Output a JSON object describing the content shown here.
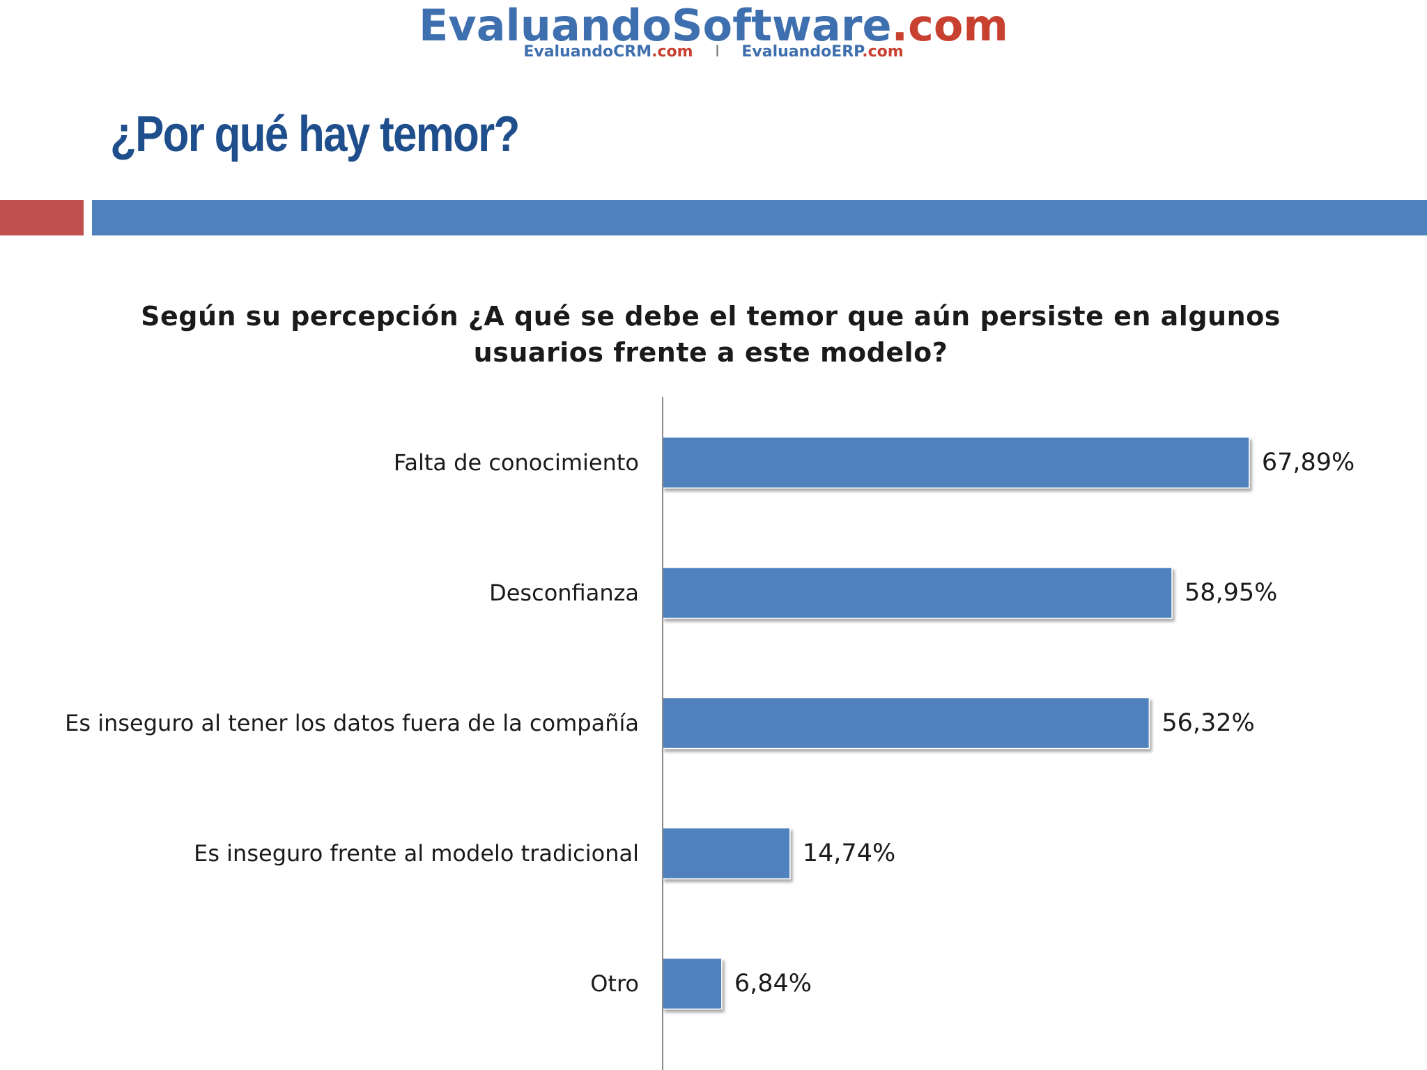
{
  "logo": {
    "main_a": "EvaluandoSoftware",
    "main_b": ".com",
    "sub_left_a": "EvaluandoCRM",
    "sub_left_b": ".com",
    "separator": "I",
    "sub_right_a": "EvaluandoERP",
    "sub_right_b": ".com"
  },
  "slide": {
    "title": "¿Por qué hay temor?"
  },
  "colors": {
    "accent_red": "#c0504d",
    "accent_blue": "#4f81bd",
    "title_blue": "#1f4e8c",
    "bar_fill": "#4f81bd"
  },
  "chart_data": {
    "type": "bar",
    "orientation": "horizontal",
    "title": "Según su percepción ¿A qué se debe el temor que aún persiste en algunos usuarios frente a este modelo?",
    "title_lines": [
      "Según su percepción ¿A qué se debe el temor que aún persiste en algunos",
      "usuarios frente a este modelo?"
    ],
    "categories": [
      "Falta de conocimiento",
      "Desconfianza",
      "Es inseguro al tener los datos fuera de la compañía",
      "Es inseguro frente al modelo tradicional",
      "Otro"
    ],
    "values": [
      67.89,
      58.95,
      56.32,
      14.74,
      6.84
    ],
    "value_labels": [
      "67,89%",
      "58,95%",
      "56,32%",
      "14,74%",
      "6,84%"
    ],
    "xlim": [
      0,
      100
    ],
    "grid": false,
    "legend": "none"
  }
}
